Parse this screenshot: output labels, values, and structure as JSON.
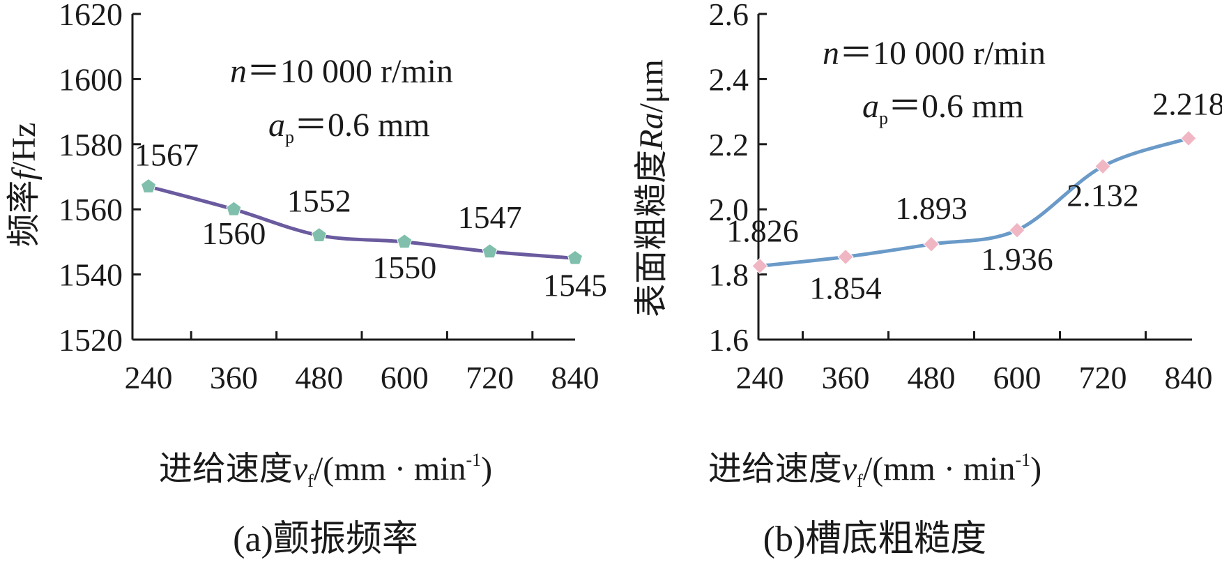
{
  "chart_data": [
    {
      "type": "line",
      "caption": "(a)颤振频率",
      "xlabel": {
        "main": "进给速度",
        "var": "v",
        "sub": "f",
        "unit": "/(mm · min",
        "sup": "-1",
        "close": ")"
      },
      "ylabel": {
        "main": "频率",
        "var": "f",
        "unit": "/Hz"
      },
      "annotation": {
        "line1_var": "n",
        "line1_rest": "＝10 000 r/min",
        "line2_var": "a",
        "line2_sub": "p",
        "line2_rest": "＝0.6 mm"
      },
      "x": [
        240,
        360,
        480,
        600,
        720,
        840
      ],
      "x_ticks": [
        "240",
        "360",
        "480",
        "600",
        "720",
        "840"
      ],
      "xlim": [
        240,
        840
      ],
      "ylim": [
        1520,
        1620
      ],
      "y_ticks": [
        "1520",
        "1540",
        "1560",
        "1580",
        "1600",
        "1620"
      ],
      "series": [
        {
          "values": [
            1567,
            1560,
            1552,
            1550,
            1547,
            1545
          ],
          "labels": [
            "1567",
            "1560",
            "1552",
            "1550",
            "1547",
            "1545"
          ]
        }
      ],
      "line_color": "#6a5a9e",
      "marker_color": "#7fbfab",
      "marker": "pentagon"
    },
    {
      "type": "line",
      "caption": "(b)槽底粗糙度",
      "xlabel": {
        "main": "进给速度",
        "var": "v",
        "sub": "f",
        "unit": "/(mm · min",
        "sup": "-1",
        "close": ")"
      },
      "ylabel": {
        "main": "表面粗糙度",
        "var": "Ra",
        "unit": "/μm"
      },
      "annotation": {
        "line1_var": "n",
        "line1_rest": "＝10 000 r/min",
        "line2_var": "a",
        "line2_sub": "p",
        "line2_rest": "＝0.6 mm"
      },
      "x": [
        240,
        360,
        480,
        600,
        720,
        840
      ],
      "x_ticks": [
        "240",
        "360",
        "480",
        "600",
        "720",
        "840"
      ],
      "xlim": [
        240,
        840
      ],
      "ylim": [
        1.6,
        2.6
      ],
      "y_ticks": [
        "1.6",
        "1.8",
        "2.0",
        "2.2",
        "2.4",
        "2.6"
      ],
      "series": [
        {
          "values": [
            1.826,
            1.854,
            1.893,
            1.936,
            2.132,
            2.218
          ],
          "labels": [
            "1.826",
            "1.854",
            "1.893",
            "1.936",
            "2.132",
            "2.218"
          ]
        }
      ],
      "line_color": "#6a9ac8",
      "marker_color": "#f0b6c4",
      "marker": "diamond"
    }
  ]
}
